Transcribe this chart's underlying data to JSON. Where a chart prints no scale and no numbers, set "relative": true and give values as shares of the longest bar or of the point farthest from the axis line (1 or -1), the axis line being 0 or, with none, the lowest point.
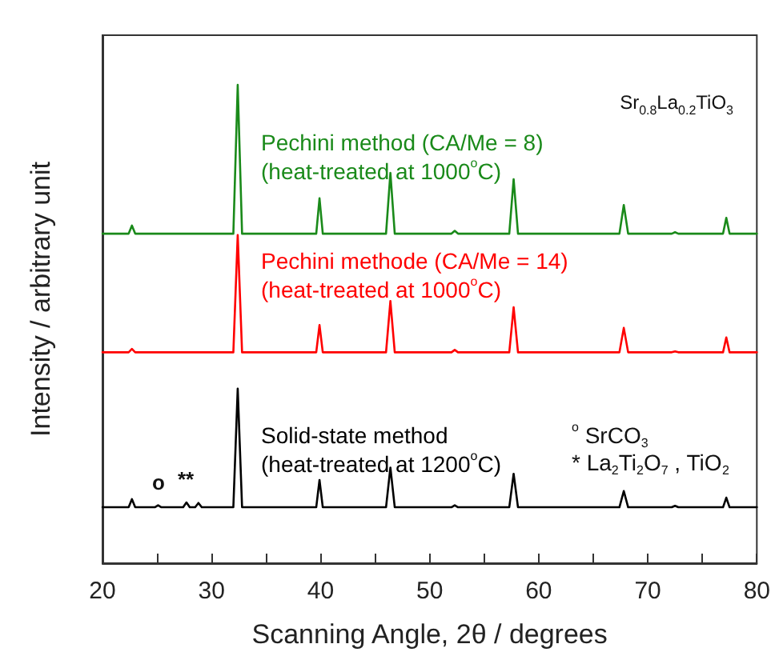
{
  "chart_data": {
    "type": "line",
    "relative": true,
    "xlabel": "Scanning Angle, 2θ / degrees",
    "ylabel": "Intensity / arbitrary unit",
    "xlim": [
      20,
      80
    ],
    "xticks": [
      20,
      {
        "value": 25,
        "label": null
      },
      30,
      {
        "value": 35,
        "label": null
      },
      40,
      {
        "value": 45,
        "label": null
      },
      50,
      {
        "value": 55,
        "label": null
      },
      60,
      {
        "value": 65,
        "label": null
      },
      70,
      {
        "value": 75,
        "label": null
      },
      80
    ],
    "grid": false,
    "legend": false,
    "marker": "none",
    "line_style": "solid",
    "x": [
      20,
      22.4,
      22.7,
      23.0,
      32.0,
      32.4,
      32.8,
      39.6,
      39.9,
      40.2,
      46.0,
      46.4,
      46.8,
      52.0,
      52.3,
      52.6,
      57.3,
      57.7,
      58.1,
      67.4,
      67.8,
      68.2,
      72.2,
      72.5,
      72.8,
      76.9,
      77.2,
      77.5,
      80
    ],
    "series": [
      {
        "name": "Pechini method (CA/Me = 8)\n(heat-treated at 1000$^{o}$C)",
        "color": "#1a8a1a",
        "values": [
          0.689,
          0.689,
          0.706,
          0.689,
          0.689,
          1.0,
          0.689,
          0.689,
          0.763,
          0.689,
          0.689,
          0.816,
          0.689,
          0.689,
          0.695,
          0.689,
          0.689,
          0.803,
          0.689,
          0.689,
          0.749,
          0.689,
          0.689,
          0.692,
          0.689,
          0.689,
          0.722,
          0.689,
          0.689
        ]
      },
      {
        "name": "Pechini methode (CA/Me = 14)\n(heat-treated at 1000$^{o}$C)",
        "color": "#ff0000",
        "values": [
          0.441,
          0.441,
          0.448,
          0.441,
          0.441,
          0.686,
          0.441,
          0.441,
          0.498,
          0.441,
          0.441,
          0.548,
          0.441,
          0.441,
          0.446,
          0.441,
          0.441,
          0.535,
          0.441,
          0.441,
          0.492,
          0.441,
          0.441,
          0.443,
          0.441,
          0.441,
          0.472,
          0.441,
          0.441
        ]
      },
      {
        "name": "Solid-state method\n(heat-treated at 1200$^{o}$C)",
        "color": "#000000",
        "x": [
          20,
          22.4,
          22.7,
          23.0,
          24.8,
          25.1,
          25.4,
          27.4,
          27.7,
          28.0,
          28.5,
          28.8,
          29.1,
          32.0,
          32.4,
          32.8,
          39.6,
          39.9,
          40.2,
          46.0,
          46.4,
          46.8,
          52.0,
          52.3,
          52.6,
          57.3,
          57.7,
          58.1,
          67.4,
          67.8,
          68.2,
          72.2,
          72.5,
          72.8,
          76.9,
          77.2,
          77.5,
          80
        ],
        "values": [
          0.117,
          0.117,
          0.134,
          0.117,
          0.117,
          0.121,
          0.117,
          0.117,
          0.127,
          0.117,
          0.117,
          0.126,
          0.117,
          0.117,
          0.365,
          0.117,
          0.117,
          0.174,
          0.117,
          0.117,
          0.2,
          0.117,
          0.117,
          0.121,
          0.117,
          0.117,
          0.187,
          0.117,
          0.117,
          0.151,
          0.117,
          0.117,
          0.12,
          0.117,
          0.117,
          0.137,
          0.117,
          0.117
        ]
      }
    ],
    "annotations": [
      "Sr$_{0.8}$La$_{0.2}$TiO$_{3}$",
      "$^{o}$ SrCO$_{3}$",
      "* La$_{2}$Ti$_{2}$O$_{7}$ , TiO$_{2}$",
      "o",
      "**"
    ]
  }
}
